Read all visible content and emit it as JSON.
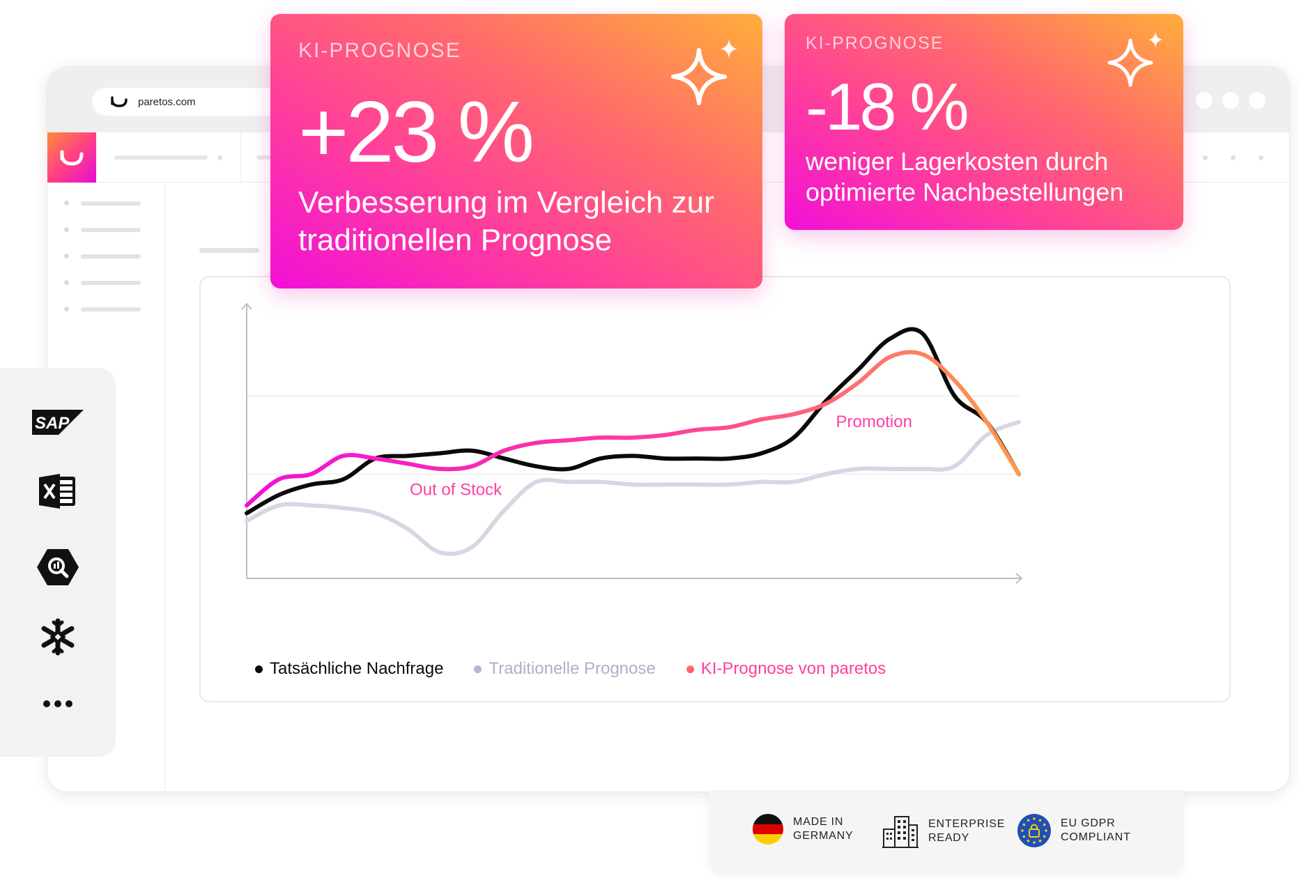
{
  "browser": {
    "url": "paretos.com"
  },
  "kpi_cards": [
    {
      "label": "KI-PROGNOSE",
      "value": "+23 %",
      "description_line1": "Verbesserung im Vergleich zur",
      "description_line2": "traditionellen Prognose"
    },
    {
      "label": "KI-PROGNOSE",
      "value": "-18 %",
      "description_line1": "weniger Lagerkosten durch",
      "description_line2": "optimierte Nachbestellungen"
    }
  ],
  "integrations": [
    {
      "name": "SAP",
      "icon": "sap-icon"
    },
    {
      "name": "Excel",
      "icon": "excel-icon"
    },
    {
      "name": "BigQuery",
      "icon": "bigquery-icon"
    },
    {
      "name": "Snowflake",
      "icon": "snowflake-icon"
    },
    {
      "name": "More",
      "icon": "more-icon"
    }
  ],
  "chart_data": {
    "type": "line",
    "title": "",
    "xlabel": "",
    "ylabel": "",
    "x": [
      0,
      1,
      2,
      3,
      4,
      5,
      6,
      7,
      8,
      9,
      10,
      11,
      12,
      13,
      14,
      15,
      16,
      17,
      18,
      19,
      20,
      21,
      22,
      23,
      24
    ],
    "ylim": [
      0,
      100
    ],
    "grid": true,
    "annotations": [
      {
        "text": "Out of Stock",
        "x": 6.5,
        "y": 32,
        "color": "#ff3fa0"
      },
      {
        "text": "Promotion",
        "x": 19.5,
        "y": 58,
        "color": "#ff3fa0"
      }
    ],
    "series": [
      {
        "name": "Tatsächliche Nachfrage",
        "color": "#0a0a0a",
        "values": [
          25,
          32,
          36,
          38,
          46,
          47,
          48,
          49,
          46,
          43,
          42,
          46,
          47,
          46,
          46,
          46,
          48,
          54,
          68,
          80,
          92,
          94,
          70,
          60,
          40
        ]
      },
      {
        "name": "Traditionelle Prognose",
        "color": "#d9d6e4",
        "values": [
          22,
          28,
          28,
          27,
          25,
          19,
          10,
          12,
          26,
          37,
          37,
          37,
          36,
          36,
          36,
          36,
          37,
          37,
          40,
          42,
          42,
          42,
          43,
          55,
          60
        ]
      },
      {
        "name": "KI-Prognose von paretos",
        "color": "#ff3fa0",
        "values": [
          28,
          38,
          40,
          47,
          46,
          44,
          42,
          43,
          49,
          52,
          53,
          54,
          54,
          55,
          57,
          58,
          61,
          63,
          67,
          75,
          85,
          86,
          76,
          60,
          40
        ]
      }
    ]
  },
  "trust_badges": [
    {
      "line1": "MADE IN",
      "line2": "GERMANY"
    },
    {
      "line1": "ENTERPRISE",
      "line2": "READY"
    },
    {
      "line1": "EU GDPR",
      "line2": "COMPLIANT"
    }
  ],
  "colors": {
    "accent_pink": "#ff3fa0",
    "accent_magenta": "#f20fd8",
    "accent_orange": "#ffae3a"
  }
}
